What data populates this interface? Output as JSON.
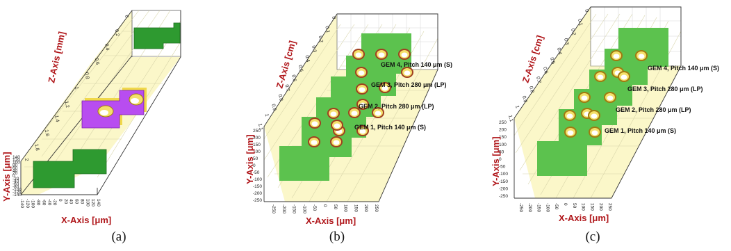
{
  "colors": {
    "floor": "#fbf7c9",
    "grid": "#c9c7a8",
    "frame": "#333333",
    "electrode": "#2e9a30",
    "gem_green": "#5cc24e",
    "gem_purple": "#b84df0",
    "gem_yellow": "#f0d84a",
    "hole_gold": "#e8c040",
    "hole_ring": "#a04020",
    "axis_label": "#b0171b"
  },
  "panels": [
    {
      "caption": "(a)",
      "z_label": "Z-Axis [mm]",
      "y_label": "Y-Axis [μm]",
      "x_label": "X-Axis [μm]",
      "z_ticks": [
        "0",
        "0.2",
        "0.4",
        "0.6",
        "0.8",
        "1",
        "1.2",
        "1.4",
        "1.6",
        "1.8",
        "2"
      ],
      "y_ticks": [
        "140",
        "120",
        "100",
        "80",
        "60",
        "40",
        "20",
        "0",
        "-20",
        "-40",
        "-60",
        "-80",
        "-100",
        "-120",
        "-140"
      ],
      "x_ticks": [
        "-140",
        "-120",
        "-100",
        "-80",
        "-60",
        "-40",
        "-20",
        "0",
        "20",
        "40",
        "60",
        "80",
        "100",
        "120",
        "140"
      ],
      "gem_labels": []
    },
    {
      "caption": "(b)",
      "z_label": "Z-Axis [cm]",
      "y_label": "Y-Axis [μm]",
      "x_label": "X-Axis [μm]",
      "z_ticks": [
        "0",
        "0.1",
        "0.2",
        "0.3",
        "0.4",
        "0.5",
        "0.6",
        "0.7",
        "0.8",
        "0.9",
        "1",
        "1.1"
      ],
      "y_ticks": [
        "250",
        "200",
        "150",
        "100",
        "50",
        "0",
        "-50",
        "-100",
        "-150",
        "-200",
        "-250"
      ],
      "x_ticks": [
        "-250",
        "-200",
        "-150",
        "-100",
        "-50",
        "0",
        "50",
        "100",
        "150",
        "200",
        "250"
      ],
      "gem_labels": [
        "GEM 4, Pitch 140 μm (S)",
        "GEM 3, Pitch 280 μm (LP)",
        "GEM 2, Pitch 280 μm (LP)",
        "GEM 1, Pitch 140 μm (S)"
      ]
    },
    {
      "caption": "(c)",
      "z_label": "Z-Axis [cm]",
      "y_label": "Y-Axis [μm]",
      "x_label": "X-Axis [μm]",
      "z_ticks": [
        "0",
        "0.1",
        "0.2",
        "0.3",
        "0.4",
        "0.5",
        "0.6",
        "0.7",
        "0.8",
        "0.9",
        "1",
        "1.1"
      ],
      "y_ticks": [
        "250",
        "200",
        "150",
        "100",
        "50",
        "0",
        "-50",
        "-100",
        "-150",
        "-200",
        "-250"
      ],
      "x_ticks": [
        "-250",
        "-200",
        "-150",
        "-100",
        "-50",
        "0",
        "50",
        "100",
        "150",
        "200",
        "250"
      ],
      "gem_labels": [
        "GEM 4, Pitch 140 μm (S)",
        "GEM 3, Pitch 280 μm (LP)",
        "GEM 2, Pitch 280 μm (LP)",
        "GEM 1, Pitch 140 μm (S)"
      ]
    }
  ]
}
